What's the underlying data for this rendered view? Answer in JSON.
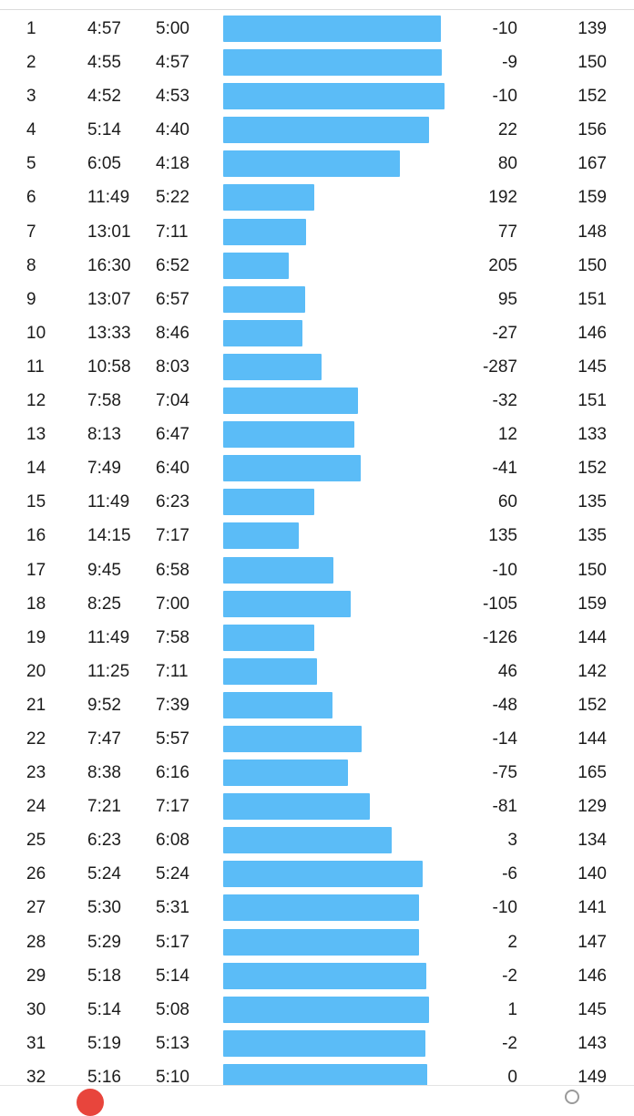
{
  "colors": {
    "bar": "#5bbcf7",
    "text": "#1c1c1c"
  },
  "bar_scale_max": "6:00",
  "splits": [
    {
      "km": "1",
      "pace": "4:57",
      "gap": "5:00",
      "elev": "-10",
      "hr": "139"
    },
    {
      "km": "2",
      "pace": "4:55",
      "gap": "4:57",
      "elev": "-9",
      "hr": "150"
    },
    {
      "km": "3",
      "pace": "4:52",
      "gap": "4:53",
      "elev": "-10",
      "hr": "152"
    },
    {
      "km": "4",
      "pace": "5:14",
      "gap": "4:40",
      "elev": "22",
      "hr": "156"
    },
    {
      "km": "5",
      "pace": "6:05",
      "gap": "4:18",
      "elev": "80",
      "hr": "167"
    },
    {
      "km": "6",
      "pace": "11:49",
      "gap": "5:22",
      "elev": "192",
      "hr": "159"
    },
    {
      "km": "7",
      "pace": "13:01",
      "gap": "7:11",
      "elev": "77",
      "hr": "148"
    },
    {
      "km": "8",
      "pace": "16:30",
      "gap": "6:52",
      "elev": "205",
      "hr": "150"
    },
    {
      "km": "9",
      "pace": "13:07",
      "gap": "6:57",
      "elev": "95",
      "hr": "151"
    },
    {
      "km": "10",
      "pace": "13:33",
      "gap": "8:46",
      "elev": "-27",
      "hr": "146"
    },
    {
      "km": "11",
      "pace": "10:58",
      "gap": "8:03",
      "elev": "-287",
      "hr": "145"
    },
    {
      "km": "12",
      "pace": "7:58",
      "gap": "7:04",
      "elev": "-32",
      "hr": "151"
    },
    {
      "km": "13",
      "pace": "8:13",
      "gap": "6:47",
      "elev": "12",
      "hr": "133"
    },
    {
      "km": "14",
      "pace": "7:49",
      "gap": "6:40",
      "elev": "-41",
      "hr": "152"
    },
    {
      "km": "15",
      "pace": "11:49",
      "gap": "6:23",
      "elev": "60",
      "hr": "135"
    },
    {
      "km": "16",
      "pace": "14:15",
      "gap": "7:17",
      "elev": "135",
      "hr": "135"
    },
    {
      "km": "17",
      "pace": "9:45",
      "gap": "6:58",
      "elev": "-10",
      "hr": "150"
    },
    {
      "km": "18",
      "pace": "8:25",
      "gap": "7:00",
      "elev": "-105",
      "hr": "159"
    },
    {
      "km": "19",
      "pace": "11:49",
      "gap": "7:58",
      "elev": "-126",
      "hr": "144"
    },
    {
      "km": "20",
      "pace": "11:25",
      "gap": "7:11",
      "elev": "46",
      "hr": "142"
    },
    {
      "km": "21",
      "pace": "9:52",
      "gap": "7:39",
      "elev": "-48",
      "hr": "152"
    },
    {
      "km": "22",
      "pace": "7:47",
      "gap": "5:57",
      "elev": "-14",
      "hr": "144"
    },
    {
      "km": "23",
      "pace": "8:38",
      "gap": "6:16",
      "elev": "-75",
      "hr": "165"
    },
    {
      "km": "24",
      "pace": "7:21",
      "gap": "7:17",
      "elev": "-81",
      "hr": "129"
    },
    {
      "km": "25",
      "pace": "6:23",
      "gap": "6:08",
      "elev": "3",
      "hr": "134"
    },
    {
      "km": "26",
      "pace": "5:24",
      "gap": "5:24",
      "elev": "-6",
      "hr": "140"
    },
    {
      "km": "27",
      "pace": "5:30",
      "gap": "5:31",
      "elev": "-10",
      "hr": "141"
    },
    {
      "km": "28",
      "pace": "5:29",
      "gap": "5:17",
      "elev": "2",
      "hr": "147"
    },
    {
      "km": "29",
      "pace": "5:18",
      "gap": "5:14",
      "elev": "-2",
      "hr": "146"
    },
    {
      "km": "30",
      "pace": "5:14",
      "gap": "5:08",
      "elev": "1",
      "hr": "145"
    },
    {
      "km": "31",
      "pace": "5:19",
      "gap": "5:13",
      "elev": "-2",
      "hr": "143"
    },
    {
      "km": "32",
      "pace": "5:16",
      "gap": "5:10",
      "elev": "0",
      "hr": "149"
    }
  ]
}
